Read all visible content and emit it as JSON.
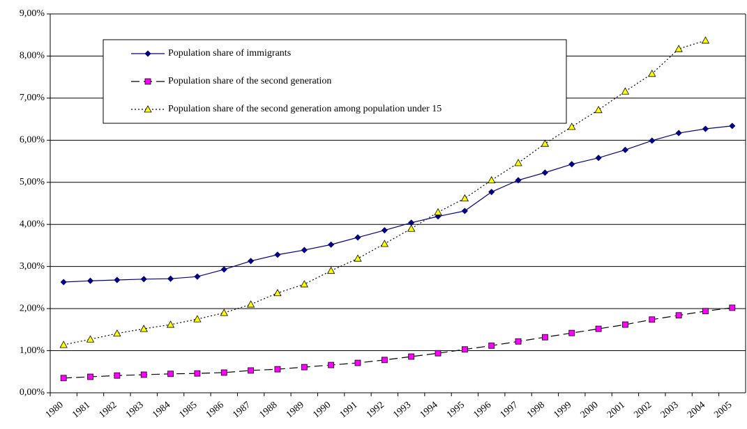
{
  "chart_data": {
    "type": "line",
    "categories": [
      "1980",
      "1981",
      "1982",
      "1983",
      "1984",
      "1985",
      "1986",
      "1987",
      "1988",
      "1989",
      "1990",
      "1991",
      "1992",
      "1993",
      "1994",
      "1995",
      "1996",
      "1997",
      "1998",
      "1999",
      "2000",
      "2001",
      "2002",
      "2003",
      "2004",
      "2005"
    ],
    "series": [
      {
        "name": "Population share of immigrants",
        "color": "#000080",
        "marker": "diamond",
        "dash": "solid",
        "values": [
          2.63,
          2.66,
          2.68,
          2.7,
          2.71,
          2.76,
          2.93,
          3.13,
          3.28,
          3.39,
          3.52,
          3.69,
          3.86,
          4.04,
          4.19,
          4.32,
          4.77,
          5.05,
          5.23,
          5.43,
          5.58,
          5.77,
          5.99,
          6.17,
          6.27,
          6.34
        ]
      },
      {
        "name": "Population share of the second generation",
        "color": "#ff00ff",
        "marker": "square",
        "dash": "dashed",
        "values": [
          0.35,
          0.38,
          0.41,
          0.43,
          0.45,
          0.46,
          0.48,
          0.53,
          0.56,
          0.61,
          0.66,
          0.71,
          0.78,
          0.86,
          0.94,
          1.03,
          1.12,
          1.22,
          1.32,
          1.42,
          1.52,
          1.62,
          1.74,
          1.84,
          1.94,
          2.02
        ]
      },
      {
        "name": "Population share of the second generation among population under 15",
        "color": "#ffff00",
        "marker": "triangle",
        "dash": "dotted",
        "values": [
          1.14,
          1.27,
          1.41,
          1.52,
          1.62,
          1.75,
          1.9,
          2.1,
          2.37,
          2.58,
          2.9,
          3.19,
          3.54,
          3.9,
          4.29,
          4.62,
          5.05,
          5.46,
          5.92,
          6.32,
          6.72,
          7.16,
          7.58,
          8.17,
          8.37,
          null
        ]
      }
    ],
    "ylim": [
      0,
      9
    ],
    "yticks": [
      {
        "value": 0,
        "label": "0,00%"
      },
      {
        "value": 1,
        "label": "1,00%"
      },
      {
        "value": 2,
        "label": "2,00%"
      },
      {
        "value": 3,
        "label": "3,00%"
      },
      {
        "value": 4,
        "label": "4,00%"
      },
      {
        "value": 5,
        "label": "5,00%"
      },
      {
        "value": 6,
        "label": "6,00%"
      },
      {
        "value": 7,
        "label": "7,00%"
      },
      {
        "value": 8,
        "label": "8,00%"
      },
      {
        "value": 9,
        "label": "9,00%"
      }
    ],
    "grid": true
  }
}
